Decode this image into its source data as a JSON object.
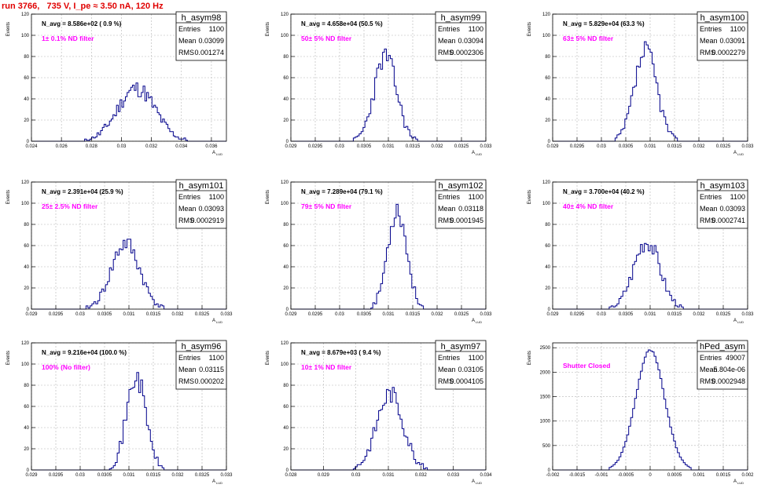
{
  "run_title": "run 3766,   735 V, I_pe ≈ 3.50 nA, 120 Hz",
  "colors": {
    "hist": "#00008b",
    "magenta": "#ff00ff",
    "title": "#e00000",
    "grid": "#b4b4b4"
  },
  "stat_labels": {
    "entries": "Entries",
    "mean": "Mean",
    "rms": "RMS"
  },
  "chart_data": [
    {
      "type": "histogram",
      "name": "h_asym98",
      "navg": "N_avg = 8.586e+02 ( 0.9 %)",
      "filter": "1± 0.1% ND filter",
      "entries": "1100",
      "mean": "0.03099",
      "rms": "0.001274",
      "ylabel": "Events",
      "xlabel": "A",
      "xlim": [
        0.024,
        0.037
      ],
      "ylim": [
        0,
        120
      ],
      "xticks": [
        0.024,
        0.026,
        0.028,
        0.03,
        0.032,
        0.034,
        0.036
      ],
      "xtick_labels": [
        "0.024",
        "0.026",
        "0.028",
        "0.03",
        "0.032",
        "0.034",
        "0.036"
      ],
      "yticks": [
        0,
        20,
        40,
        60,
        80,
        100,
        120
      ],
      "ytick_labels": [
        "0",
        "20",
        "40",
        "60",
        "80",
        "100",
        "120"
      ],
      "mu": 0.031,
      "sigma": 0.00125,
      "peak": 50,
      "nbins": 110,
      "seed": 11
    },
    {
      "type": "histogram",
      "name": "h_asym99",
      "navg": "N_avg = 4.658e+04 (50.5 %)",
      "filter": "50± 5% ND filter",
      "entries": "1100",
      "mean": "0.03094",
      "rms": "0.0002306",
      "ylabel": "Events",
      "xlabel": "A",
      "xlim": [
        0.029,
        0.033
      ],
      "ylim": [
        0,
        120
      ],
      "xticks": [
        0.029,
        0.0295,
        0.03,
        0.0305,
        0.031,
        0.0315,
        0.032,
        0.0325,
        0.033
      ],
      "xtick_labels": [
        "0.029",
        "0.0295",
        "0.03",
        "0.0305",
        "0.031",
        "0.0315",
        "0.032",
        "0.0325",
        "0.033"
      ],
      "yticks": [
        0,
        20,
        40,
        60,
        80,
        100,
        120
      ],
      "ytick_labels": [
        "0",
        "20",
        "40",
        "60",
        "80",
        "100",
        "120"
      ],
      "mu": 0.03094,
      "sigma": 0.00023,
      "peak": 80,
      "nbins": 100,
      "seed": 23
    },
    {
      "type": "histogram",
      "name": "h_asym100",
      "navg": "N_avg = 5.829e+04 (63.3 %)",
      "filter": "63± 5% ND filter",
      "entries": "1100",
      "mean": "0.03091",
      "rms": "0.0002279",
      "ylabel": "Events",
      "xlabel": "A",
      "xlim": [
        0.029,
        0.033
      ],
      "ylim": [
        0,
        120
      ],
      "xticks": [
        0.029,
        0.0295,
        0.03,
        0.0305,
        0.031,
        0.0315,
        0.032,
        0.0325,
        0.033
      ],
      "xtick_labels": [
        "0.029",
        "0.0295",
        "0.03",
        "0.0305",
        "0.031",
        "0.0315",
        "0.032",
        "0.0325",
        "0.033"
      ],
      "yticks": [
        0,
        20,
        40,
        60,
        80,
        100,
        120
      ],
      "ytick_labels": [
        "0",
        "20",
        "40",
        "60",
        "80",
        "100",
        "120"
      ],
      "mu": 0.03091,
      "sigma": 0.00023,
      "peak": 85,
      "nbins": 100,
      "seed": 37
    },
    {
      "type": "histogram",
      "name": "h_asym101",
      "navg": "N_avg = 2.391e+04 (25.9 %)",
      "filter": "25± 2.5% ND filter",
      "entries": "1100",
      "mean": "0.03093",
      "rms": "0.0002919",
      "ylabel": "Events",
      "xlabel": "A",
      "xlim": [
        0.029,
        0.033
      ],
      "ylim": [
        0,
        120
      ],
      "xticks": [
        0.029,
        0.0295,
        0.03,
        0.0305,
        0.031,
        0.0315,
        0.032,
        0.0325,
        0.033
      ],
      "xtick_labels": [
        "0.029",
        "0.0295",
        "0.03",
        "0.0305",
        "0.031",
        "0.0315",
        "0.032",
        "0.0325",
        "0.033"
      ],
      "yticks": [
        0,
        20,
        40,
        60,
        80,
        100,
        120
      ],
      "ytick_labels": [
        "0",
        "20",
        "40",
        "60",
        "80",
        "100",
        "120"
      ],
      "mu": 0.03093,
      "sigma": 0.00029,
      "peak": 62,
      "nbins": 100,
      "seed": 41
    },
    {
      "type": "histogram",
      "name": "h_asym102",
      "navg": "N_avg = 7.289e+04 (79.1 %)",
      "filter": "79± 5% ND filter",
      "entries": "1100",
      "mean": "0.03118",
      "rms": "0.0001945",
      "ylabel": "Events",
      "xlabel": "A",
      "xlim": [
        0.029,
        0.033
      ],
      "ylim": [
        0,
        120
      ],
      "xticks": [
        0.029,
        0.0295,
        0.03,
        0.0305,
        0.031,
        0.0315,
        0.032,
        0.0325,
        0.033
      ],
      "xtick_labels": [
        "0.029",
        "0.0295",
        "0.03",
        "0.0305",
        "0.031",
        "0.0315",
        "0.032",
        "0.0325",
        "0.033"
      ],
      "yticks": [
        0,
        20,
        40,
        60,
        80,
        100,
        120
      ],
      "ytick_labels": [
        "0",
        "20",
        "40",
        "60",
        "80",
        "100",
        "120"
      ],
      "mu": 0.03118,
      "sigma": 0.000195,
      "peak": 95,
      "nbins": 100,
      "seed": 53
    },
    {
      "type": "histogram",
      "name": "h_asym103",
      "navg": "N_avg = 3.700e+04 (40.2 %)",
      "filter": "40± 4% ND filter",
      "entries": "1100",
      "mean": "0.03093",
      "rms": "0.0002741",
      "ylabel": "Events",
      "xlabel": "A",
      "xlim": [
        0.029,
        0.033
      ],
      "ylim": [
        0,
        120
      ],
      "xticks": [
        0.029,
        0.0295,
        0.03,
        0.0305,
        0.031,
        0.0315,
        0.032,
        0.0325,
        0.033
      ],
      "xtick_labels": [
        "0.029",
        "0.0295",
        "0.03",
        "0.0305",
        "0.031",
        "0.0315",
        "0.032",
        "0.0325",
        "0.033"
      ],
      "yticks": [
        0,
        20,
        40,
        60,
        80,
        100,
        120
      ],
      "ytick_labels": [
        "0",
        "20",
        "40",
        "60",
        "80",
        "100",
        "120"
      ],
      "mu": 0.03093,
      "sigma": 0.00027,
      "peak": 65,
      "nbins": 100,
      "seed": 67
    },
    {
      "type": "histogram",
      "name": "h_asym96",
      "navg": "N_avg = 9.216e+04 (100.0 %)",
      "filter": "100% (No filter)",
      "entries": "1100",
      "mean": "0.03115",
      "rms": "0.000202",
      "ylabel": "Events",
      "xlabel": "A",
      "xlim": [
        0.029,
        0.033
      ],
      "ylim": [
        0,
        120
      ],
      "xticks": [
        0.029,
        0.0295,
        0.03,
        0.0305,
        0.031,
        0.0315,
        0.032,
        0.0325,
        0.033
      ],
      "xtick_labels": [
        "0.029",
        "0.0295",
        "0.03",
        "0.0305",
        "0.031",
        "0.0315",
        "0.032",
        "0.0325",
        "0.033"
      ],
      "yticks": [
        0,
        20,
        40,
        60,
        80,
        100,
        120
      ],
      "ytick_labels": [
        "0",
        "20",
        "40",
        "60",
        "80",
        "100",
        "120"
      ],
      "mu": 0.03115,
      "sigma": 0.0002,
      "peak": 88,
      "nbins": 100,
      "seed": 71
    },
    {
      "type": "histogram",
      "name": "h_asym97",
      "navg": "N_avg = 8.679e+03 ( 9.4 %)",
      "filter": "10± 1% ND filter",
      "entries": "1100",
      "mean": "0.03105",
      "rms": "0.0004105",
      "ylabel": "Events",
      "xlabel": "A",
      "xlim": [
        0.028,
        0.034
      ],
      "ylim": [
        0,
        120
      ],
      "xticks": [
        0.028,
        0.029,
        0.03,
        0.031,
        0.032,
        0.033,
        0.034
      ],
      "xtick_labels": [
        "0.028",
        "0.029",
        "0.03",
        "0.031",
        "0.032",
        "0.033",
        "0.034"
      ],
      "yticks": [
        0,
        20,
        40,
        60,
        80,
        100,
        120
      ],
      "ytick_labels": [
        "0",
        "20",
        "40",
        "60",
        "80",
        "100",
        "120"
      ],
      "mu": 0.03105,
      "sigma": 0.00041,
      "peak": 72,
      "nbins": 100,
      "seed": 83
    },
    {
      "type": "histogram",
      "name": "hPed_asym",
      "navg": "",
      "filter": "Shutter Closed",
      "entries": "49007",
      "mean": "-5.804e-06",
      "rms": "0.0002948",
      "ylabel": "Events",
      "xlabel": "A",
      "xlim": [
        -0.002,
        0.002
      ],
      "ylim": [
        0,
        2600
      ],
      "xticks": [
        -0.002,
        -0.0015,
        -0.001,
        -0.0005,
        0,
        0.0005,
        0.001,
        0.0015,
        0.002
      ],
      "xtick_labels": [
        "-0.002",
        "-0.0015",
        "-0.001",
        "-0.0005",
        "0",
        "0.0005",
        "0.001",
        "0.0015",
        "0.002"
      ],
      "yticks": [
        0,
        500,
        1000,
        1500,
        2000,
        2500
      ],
      "ytick_labels": [
        "0",
        "500",
        "1000",
        "1500",
        "2000",
        "2500"
      ],
      "mu": 0.0,
      "sigma": 0.000295,
      "peak": 2450,
      "nbins": 100,
      "seed": 0
    }
  ]
}
